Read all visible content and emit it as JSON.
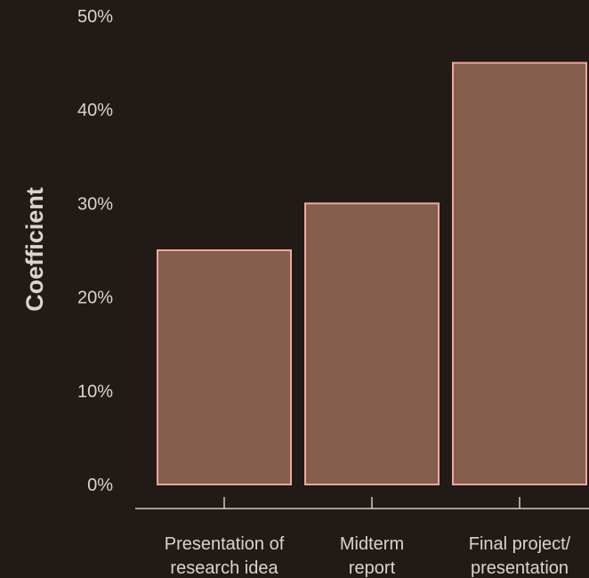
{
  "chart_data": {
    "type": "bar",
    "categories": [
      [
        "Presentation of",
        "research idea"
      ],
      [
        "Midterm",
        "report"
      ],
      [
        "Final project/",
        "presentation"
      ]
    ],
    "values": [
      25,
      30,
      45
    ],
    "ylabel": "Coefficient",
    "ylim": [
      0,
      50
    ],
    "yticks": [
      0,
      10,
      20,
      30,
      40,
      50
    ],
    "ytick_labels": [
      "0%",
      "10%",
      "20%",
      "30%",
      "40%",
      "50%"
    ],
    "grid": false,
    "colors": {
      "background": "#221a16",
      "bar_fill": "#855e4d",
      "bar_stroke": "#f0a99a",
      "axis": "#cfc9c4",
      "text": "#d8d4d0"
    }
  }
}
